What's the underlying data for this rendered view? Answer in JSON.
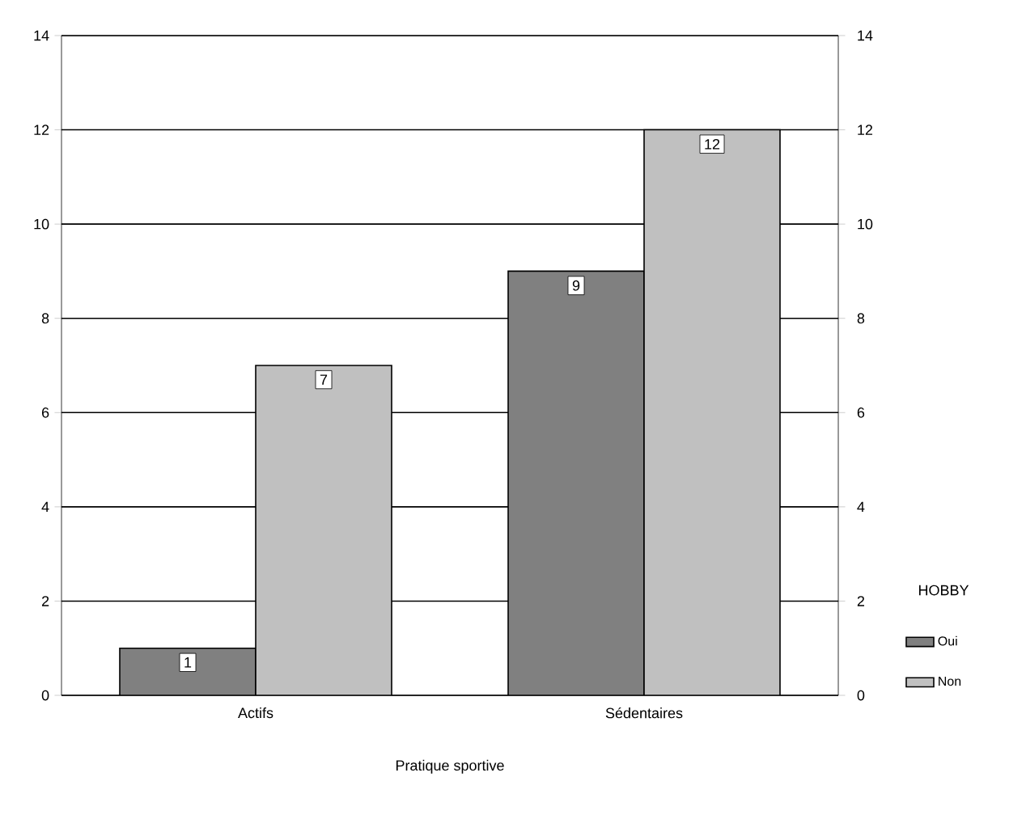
{
  "chart_data": {
    "type": "bar",
    "xlabel": "Pratique sportive",
    "legend_title": "HOBBY",
    "categories": [
      "Actifs",
      "Sédentaires"
    ],
    "series": [
      {
        "name": "Oui",
        "color": "#808080",
        "values": [
          1,
          9
        ]
      },
      {
        "name": "Non",
        "color": "#c0c0c0",
        "values": [
          7,
          12
        ]
      }
    ],
    "ylim": [
      0,
      14
    ],
    "yticks": [
      0,
      2,
      4,
      6,
      8,
      10,
      12,
      14
    ],
    "y2lim": [
      0,
      14
    ],
    "y2ticks": [
      0,
      2,
      4,
      6,
      8,
      10,
      12,
      14
    ],
    "grid": "y",
    "legend": "right",
    "data_labels": true
  }
}
